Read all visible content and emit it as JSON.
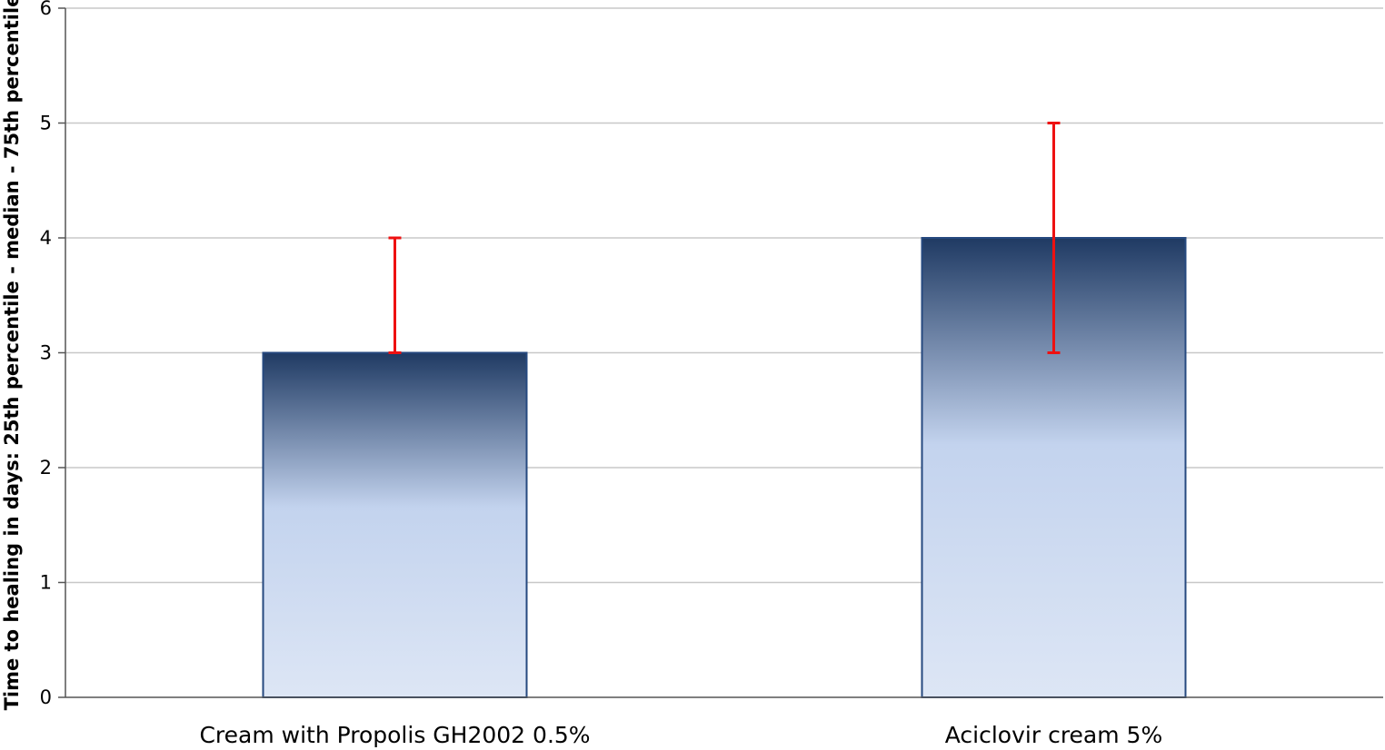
{
  "chart_data": {
    "type": "bar",
    "title": "",
    "xlabel": "",
    "ylabel": "Time to healing in days: 25th  percentile - median - 75th percentile",
    "categories": [
      "Cream with Propolis GH2002 0.5%",
      "Aciclovir cream 5%"
    ],
    "values": [
      3,
      4
    ],
    "error_low": [
      3,
      3
    ],
    "error_high": [
      4,
      5
    ],
    "ylim": [
      0,
      6
    ],
    "yticks": [
      0,
      1,
      2,
      3,
      4,
      5,
      6
    ],
    "grid": true,
    "legend": "none",
    "colors": {
      "bar_top": "#1f3a63",
      "bar_mid": "#c3d3ee",
      "bar_bottom": "#dde6f5",
      "bar_edge": "#26497f",
      "error_bar": "#ee1111",
      "grid": "#c8c8c8",
      "axis": "#555555"
    }
  }
}
